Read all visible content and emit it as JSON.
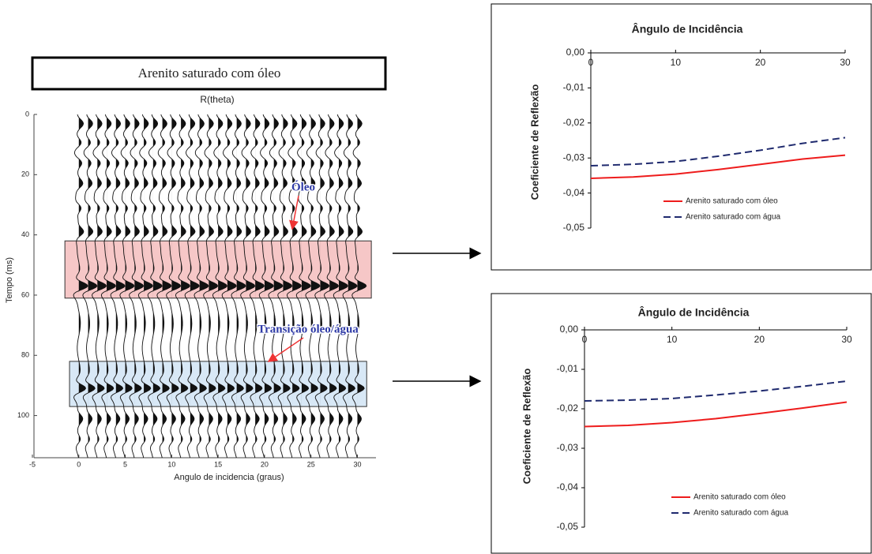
{
  "chart_data": [
    {
      "type": "seismic",
      "title": "Arenito saturado com óleo",
      "subtitle": "R(theta)",
      "x_label": "Angulo de incidencia (graus)",
      "y_label": "Tempo (ms)",
      "xlim": [
        -5,
        32
      ],
      "xticks": [
        -5,
        0,
        5,
        10,
        15,
        20,
        25,
        30
      ],
      "ylim": [
        0,
        114
      ],
      "yticks": [
        0,
        20,
        40,
        60,
        80,
        100
      ],
      "y_inverted": true,
      "traces": [
        0,
        1,
        2,
        3,
        4,
        5,
        6,
        7,
        8,
        9,
        10,
        11,
        12,
        13,
        14,
        15,
        16,
        17,
        18,
        19,
        20,
        21,
        22,
        23,
        24,
        25,
        26,
        27,
        28,
        29,
        30
      ],
      "events": {
        "time": [
          3,
          9.5,
          16,
          23,
          31,
          39,
          57,
          91,
          101,
          108
        ],
        "amplitude": [
          0.5,
          0.5,
          0.5,
          0.5,
          0.5,
          0.6,
          1.4,
          1.2,
          0.4,
          0.4
        ]
      },
      "regions": [
        {
          "ylim": [
            42,
            61
          ],
          "xlim": [
            -1.5,
            31.5
          ],
          "color": "#f6c7c7"
        },
        {
          "ylim": [
            82,
            97
          ],
          "xlim": [
            -1,
            31
          ],
          "color": "#d8e8f6"
        }
      ],
      "annotations": [
        "Óleo",
        "Transição óleo/água"
      ]
    },
    {
      "type": "line",
      "title": "Ângulo de Incidência",
      "y_label": "Coeficiente de Reflexão",
      "xlim": [
        0,
        30
      ],
      "xticks": [
        0,
        10,
        20,
        30
      ],
      "ylim": [
        -0.05,
        0
      ],
      "yticks": [
        {
          "value": 0,
          "label": "0,00"
        },
        {
          "value": -0.01,
          "label": "-0,01"
        },
        {
          "value": -0.02,
          "label": "-0,02"
        },
        {
          "value": -0.03,
          "label": "-0,03"
        },
        {
          "value": -0.04,
          "label": "-0,04"
        },
        {
          "value": -0.05,
          "label": "-0,05"
        }
      ],
      "x": [
        0,
        5,
        10,
        15,
        20,
        25,
        30
      ],
      "series": [
        {
          "name": "Arenito saturado com óleo",
          "color": "#ee1c1c",
          "dashed": false,
          "values": [
            -0.0358,
            -0.0354,
            -0.0346,
            -0.0333,
            -0.0318,
            -0.0303,
            -0.0292
          ]
        },
        {
          "name": "Arenito saturado com água",
          "color": "#1f2a6e",
          "dashed": true,
          "values": [
            -0.0322,
            -0.0318,
            -0.031,
            -0.0295,
            -0.0278,
            -0.0258,
            -0.0242
          ]
        }
      ]
    },
    {
      "type": "line",
      "title": "Ângulo de Incidência",
      "y_label": "Coeficiente de Reflexão",
      "xlim": [
        0,
        30
      ],
      "xticks": [
        0,
        10,
        20,
        30
      ],
      "ylim": [
        -0.05,
        0
      ],
      "yticks": [
        {
          "value": 0,
          "label": "0,00"
        },
        {
          "value": -0.01,
          "label": "-0,01"
        },
        {
          "value": -0.02,
          "label": "-0,02"
        },
        {
          "value": -0.03,
          "label": "-0,03"
        },
        {
          "value": -0.04,
          "label": "-0,04"
        },
        {
          "value": -0.05,
          "label": "-0,05"
        }
      ],
      "x": [
        0,
        5,
        10,
        15,
        20,
        25,
        30
      ],
      "series": [
        {
          "name": "Arenito saturado com óleo",
          "color": "#ee1c1c",
          "dashed": false,
          "values": [
            -0.0245,
            -0.0242,
            -0.0235,
            -0.0225,
            -0.0212,
            -0.0198,
            -0.0183
          ]
        },
        {
          "name": "Arenito saturado com água",
          "color": "#1f2a6e",
          "dashed": true,
          "values": [
            -0.018,
            -0.0178,
            -0.0174,
            -0.0165,
            -0.0155,
            -0.0143,
            -0.013
          ]
        }
      ]
    }
  ]
}
